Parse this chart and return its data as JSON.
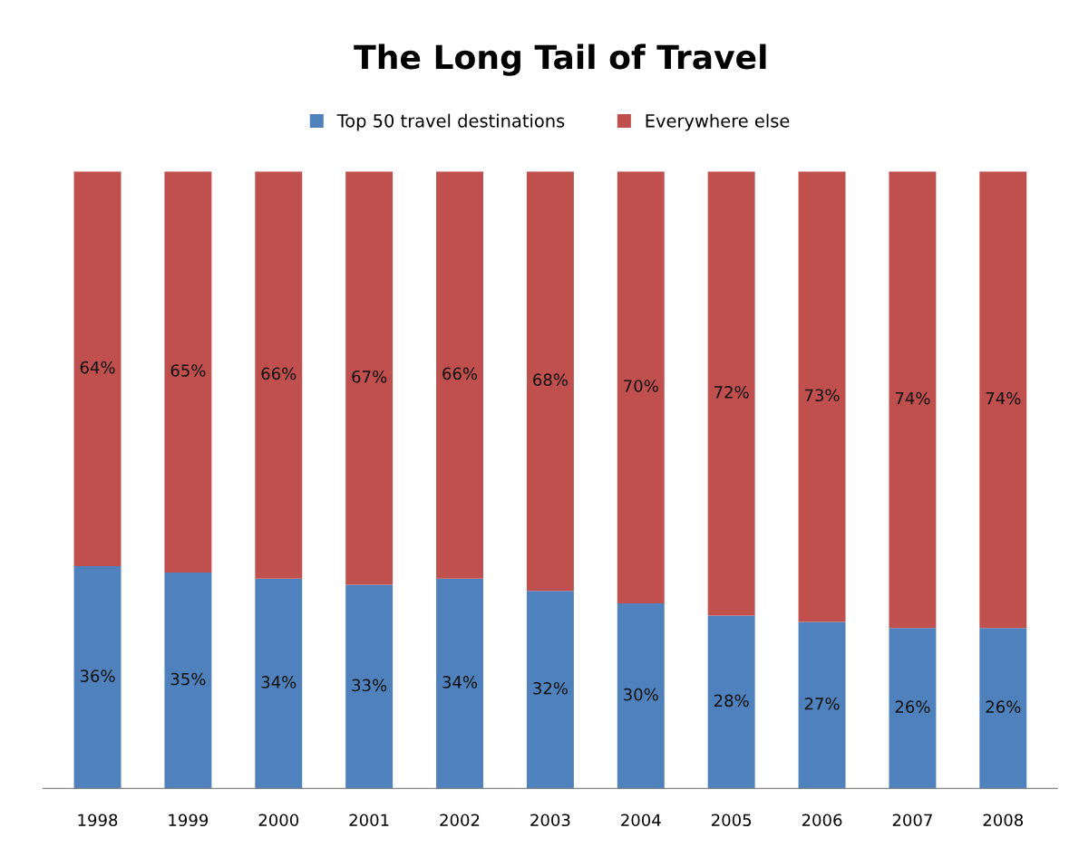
{
  "chart_data": {
    "type": "bar",
    "title": "The Long Tail of Travel",
    "categories": [
      "1998",
      "1999",
      "2000",
      "2001",
      "2002",
      "2003",
      "2004",
      "2005",
      "2006",
      "2007",
      "2008"
    ],
    "stacked": true,
    "ylim": [
      0,
      100
    ],
    "legend": "top",
    "grid": false,
    "tick_labels": "x",
    "series": [
      {
        "name": "Top 50 travel destinations",
        "color": "#4f81bd",
        "values": [
          36,
          35,
          34,
          33,
          34,
          32,
          30,
          28,
          27,
          26,
          26
        ],
        "value_labels": [
          "36%",
          "35%",
          "34%",
          "33%",
          "34%",
          "32%",
          "30%",
          "28%",
          "27%",
          "26%",
          "26%"
        ]
      },
      {
        "name": "Everywhere else",
        "color": "#c0504d",
        "values": [
          64,
          65,
          66,
          67,
          66,
          68,
          70,
          72,
          73,
          74,
          74
        ],
        "value_labels": [
          "64%",
          "65%",
          "66%",
          "67%",
          "66%",
          "68%",
          "70%",
          "72%",
          "73%",
          "74%",
          "74%"
        ]
      }
    ]
  }
}
